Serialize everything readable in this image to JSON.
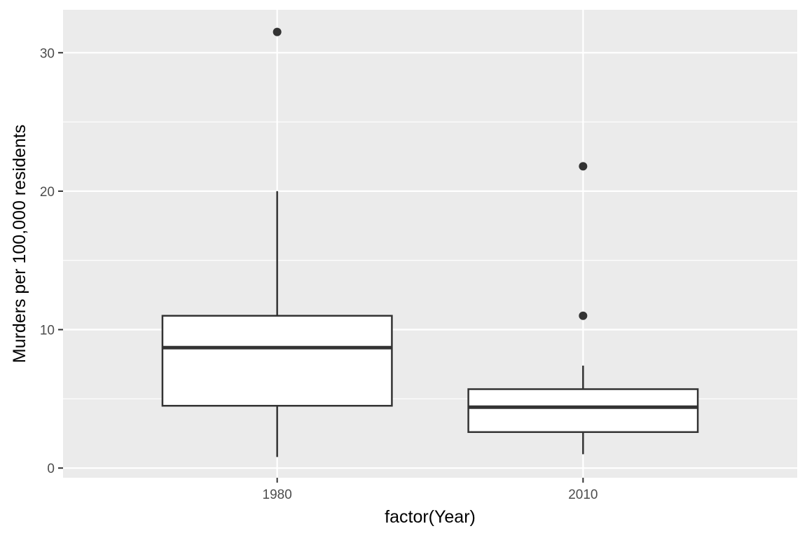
{
  "chart_data": {
    "type": "boxplot",
    "title": "",
    "xlabel": "factor(Year)",
    "ylabel": "Murders per 100,000 residents",
    "categories": [
      "1980",
      "2010"
    ],
    "ylim": [
      -0.7,
      33.1
    ],
    "yticks": [
      0,
      10,
      20,
      30
    ],
    "ytick_labels": [
      "0",
      "10",
      "20",
      "30"
    ],
    "grid": true,
    "legend": "none",
    "boxes": [
      {
        "category": "1980",
        "whisker_low": 0.8,
        "q1": 4.5,
        "median": 8.7,
        "q3": 11.0,
        "whisker_high": 20.0,
        "outliers": [
          31.5
        ]
      },
      {
        "category": "2010",
        "whisker_low": 1.0,
        "q1": 2.6,
        "median": 4.4,
        "q3": 5.7,
        "whisker_high": 7.4,
        "outliers": [
          11.0,
          21.8
        ]
      }
    ],
    "colors": {
      "panel": "#ebebeb",
      "grid": "#ffffff",
      "box_fill": "#ffffff",
      "box_line": "#333333"
    }
  }
}
